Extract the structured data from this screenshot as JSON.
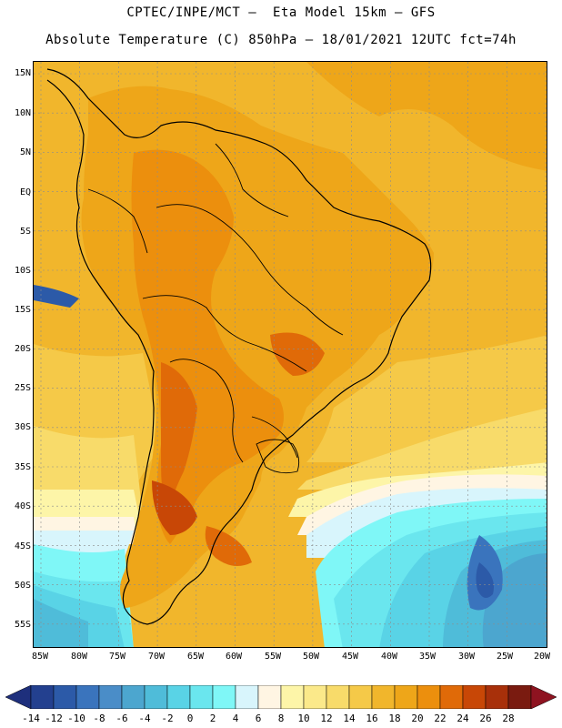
{
  "title_line1": "CPTEC/INPE/MCT –  Eta Model 15km – GFS",
  "title_line2": "Absolute Temperature (C) 850hPa – 18/01/2021 12UTC fct=74h",
  "latitude_labels": [
    "15N",
    "10N",
    "5N",
    "EQ",
    "5S",
    "10S",
    "15S",
    "20S",
    "25S",
    "30S",
    "35S",
    "40S",
    "45S",
    "50S",
    "55S"
  ],
  "longitude_labels": [
    "85W",
    "80W",
    "75W",
    "70W",
    "65W",
    "60W",
    "55W",
    "50W",
    "45W",
    "40W",
    "35W",
    "30W",
    "25W",
    "20W"
  ],
  "colorbar": {
    "labels": [
      "-14",
      "-12",
      "-10",
      "-8",
      "-6",
      "-4",
      "-2",
      "0",
      "2",
      "4",
      "6",
      "8",
      "10",
      "12",
      "14",
      "16",
      "18",
      "20",
      "22",
      "24",
      "26",
      "28"
    ],
    "colors": [
      "#23408f",
      "#2c5aa8",
      "#3a74bd",
      "#4a8dc8",
      "#4ca6cf",
      "#4fbcd9",
      "#59d3e6",
      "#6ae6ee",
      "#7ff7f7",
      "#d8f5fc",
      "#fff5e3",
      "#fdf5a8",
      "#fbe98a",
      "#f8db6a",
      "#f5c948",
      "#f1b62c",
      "#eea619",
      "#ec8f0d",
      "#e06a08",
      "#c84706",
      "#a8300a",
      "#7a1b10"
    ],
    "under_color": "#1e2f7c",
    "over_color": "#8e1320"
  },
  "fields": {
    "ocean_warm": "#f1b62c",
    "land_warm": "#eea619",
    "land_hot": "#ec8f0d",
    "land_hottest": "#e06a08",
    "land_peak": "#c84706",
    "ocean_mild": "#f5c948",
    "ocean_cool": "#f8db6a",
    "ocean_cooler": "#fbe98a",
    "ocean_pale": "#fdf5a8",
    "ocean_cream": "#fff5e3",
    "ocean_ice": "#d8f5fc",
    "ocean_cyan": "#7ff7f7",
    "ocean_aqua": "#6ae6ee",
    "ocean_teal": "#59d3e6",
    "ocean_blue": "#4fbcd9",
    "ocean_mid": "#4ca6cf",
    "ocean_dark": "#3a74bd",
    "ocean_navy": "#2c5aa8",
    "coast": "#000000",
    "grid": "#8c8c8c"
  }
}
